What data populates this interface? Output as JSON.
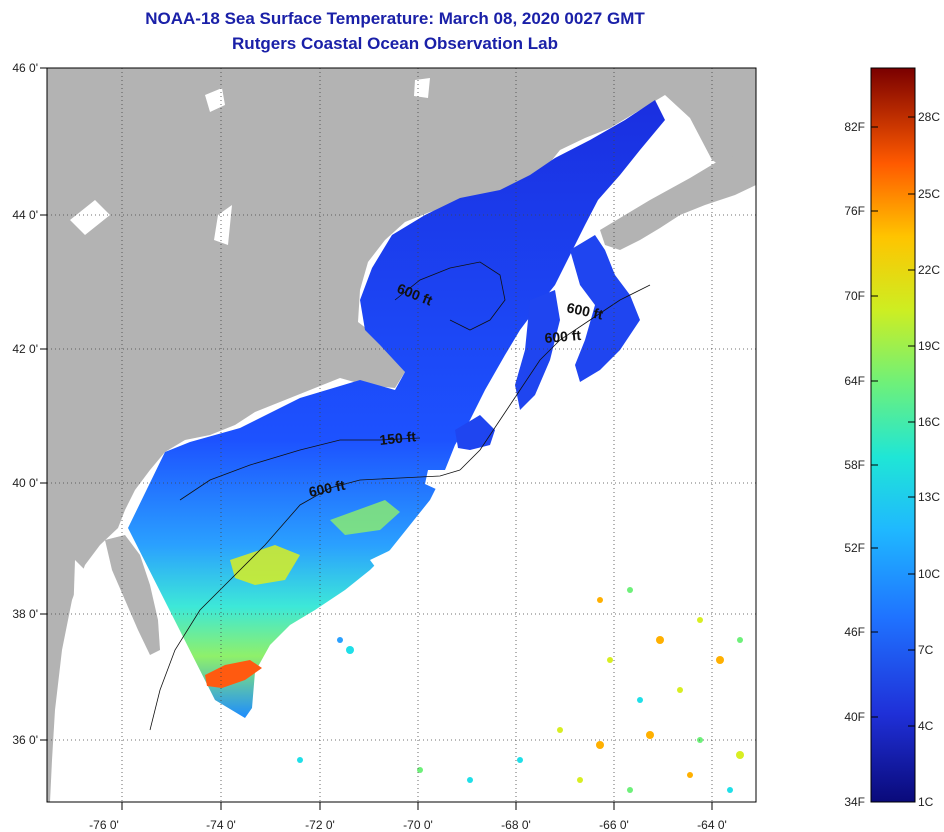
{
  "title_line1": "NOAA-18 Sea Surface Temperature:  March 08, 2020 0027 GMT",
  "title_line2": "Rutgers Coastal Ocean Observation Lab",
  "lat_labels": [
    "46 0'",
    "44 0'",
    "42 0'",
    "40 0'",
    "38 0'",
    "36 0'"
  ],
  "lon_labels": [
    "-76 0'",
    "-74 0'",
    "-72 0'",
    "-70 0'",
    "-68 0'",
    "-66 0'",
    "-64 0'"
  ],
  "contours": [
    {
      "label": "600 ft"
    },
    {
      "label": "600 ft"
    },
    {
      "label": "600 ft"
    },
    {
      "label": "150 ft"
    },
    {
      "label": "600 ft"
    }
  ],
  "colorbar": {
    "f_labels": [
      "82F",
      "76F",
      "70F",
      "64F",
      "58F",
      "52F",
      "46F",
      "40F",
      "34F"
    ],
    "c_labels": [
      "28C",
      "25C",
      "22C",
      "19C",
      "16C",
      "13C",
      "10C",
      "7C",
      "4C",
      "1C"
    ]
  },
  "colors": {
    "title": "#1a20a8",
    "land": "#b3b3b3",
    "scale": [
      "#0a0a7a",
      "#1f36e8",
      "#1f8cff",
      "#1fdfe8",
      "#6ef07a",
      "#d8ee22",
      "#ffb000",
      "#ff3a00",
      "#7a0000"
    ]
  }
}
